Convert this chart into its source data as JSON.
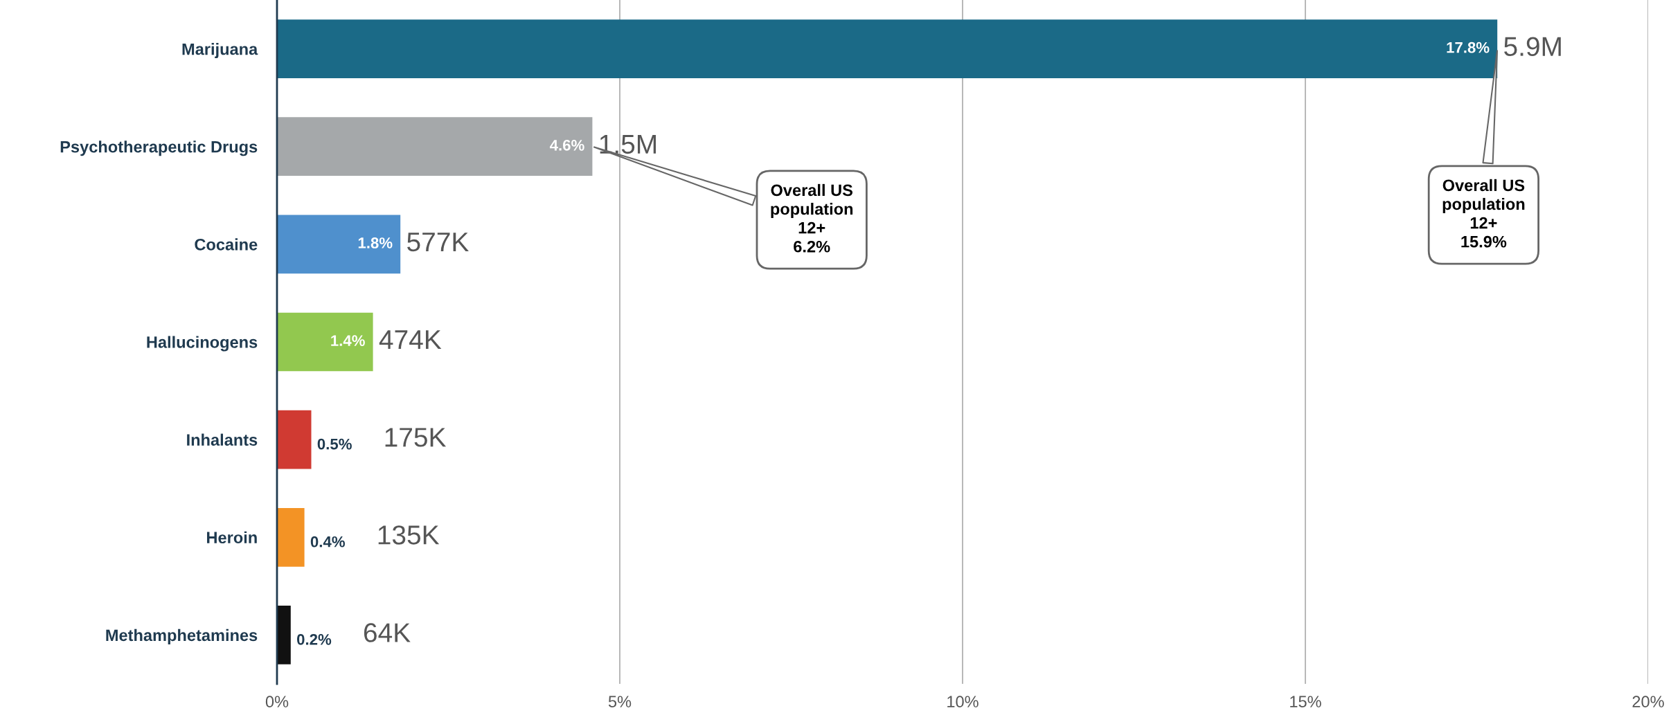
{
  "chart_data": {
    "type": "bar",
    "orientation": "horizontal",
    "categories": [
      "Marijuana",
      "Psychotherapeutic Drugs",
      "Cocaine",
      "Hallucinogens",
      "Inhalants",
      "Heroin",
      "Methamphetamines"
    ],
    "values": [
      17.8,
      4.6,
      1.8,
      1.4,
      0.5,
      0.4,
      0.2
    ],
    "colors": [
      "#1b6a87",
      "#a5a8aa",
      "#4f90cd",
      "#92c84f",
      "#d03a32",
      "#f39325",
      "#111111"
    ],
    "value_labels": [
      "17.8%",
      "4.6%",
      "1.8%",
      "1.4%",
      "0.5%",
      "0.4%",
      "0.2%"
    ],
    "xlim": [
      0,
      20
    ],
    "xticks": [
      {
        "value": 0,
        "label": "0%"
      },
      {
        "value": 5,
        "label": "5%"
      },
      {
        "value": 10,
        "label": "10%"
      },
      {
        "value": 15,
        "label": "15%"
      },
      {
        "value": 20,
        "label": "20%"
      }
    ],
    "grid": "x",
    "annotations": [
      {
        "text": "5.9M",
        "x": 17.8,
        "y": "Marijuana"
      },
      {
        "text": "1.5M",
        "x": 4.6,
        "y": "Psychotherapeutic Drugs"
      },
      {
        "text": "577K",
        "x": 1.8,
        "y": "Cocaine"
      },
      {
        "text": "474K",
        "x": 1.4,
        "y": "Hallucinogens"
      },
      {
        "text": "175K",
        "x": 0.5,
        "y": "Inhalants"
      },
      {
        "text": "135K",
        "x": 0.4,
        "y": "Heroin"
      },
      {
        "text": "64K",
        "x": 0.2,
        "y": "Methamphetamines"
      },
      {
        "text": "Overall US\npopulation\n12+\n6.2%",
        "x": 4.6,
        "y": "Psychotherapeutic Drugs"
      },
      {
        "text": "Overall US\npopulation\n12+\n15.9%",
        "x": 17.8,
        "y": "Marijuana"
      }
    ]
  }
}
